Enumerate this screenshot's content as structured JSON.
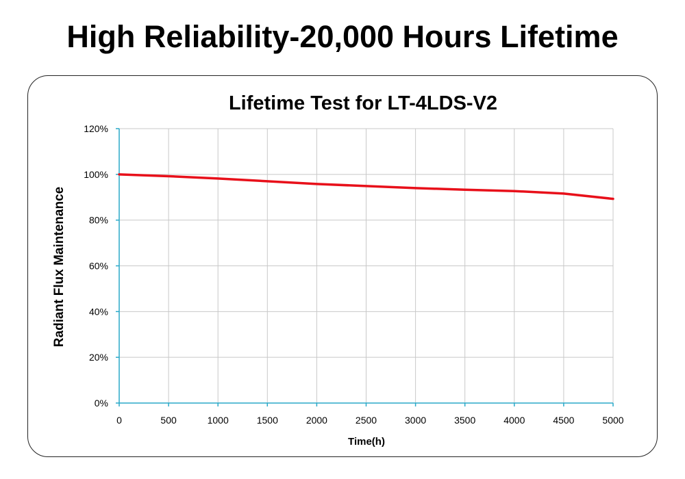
{
  "page_title": "High Reliability-20,000 Hours Lifetime",
  "colors": {
    "series_line": "#e8101a",
    "axis": "#29a9c9",
    "grid": "#c8c8c8",
    "text": "#000000"
  },
  "chart_data": {
    "type": "line",
    "title": "Lifetime Test for LT-4LDS-V2",
    "xlabel": "Time(h)",
    "ylabel": "Radiant Flux Maintenance",
    "x": [
      0,
      500,
      1000,
      1500,
      2000,
      2500,
      3000,
      3500,
      4000,
      4500,
      5000
    ],
    "series": [
      {
        "name": "Radiant Flux Maintenance",
        "values": [
          100,
          99.2,
          98.2,
          97,
          95.8,
          94.9,
          94,
          93.3,
          92.7,
          91.6,
          89.3
        ]
      }
    ],
    "xlim": [
      0,
      5000
    ],
    "ylim": [
      0,
      120
    ],
    "x_ticks": [
      0,
      500,
      1000,
      1500,
      2000,
      2500,
      3000,
      3500,
      4000,
      4500,
      5000
    ],
    "x_tick_labels": [
      "0",
      "500",
      "1000",
      "1500",
      "2000",
      "2500",
      "3000",
      "3500",
      "4000",
      "4500",
      "5000"
    ],
    "y_ticks": [
      0,
      20,
      40,
      60,
      80,
      100,
      120
    ],
    "y_tick_labels": [
      "0%",
      "20%",
      "40%",
      "60%",
      "80%",
      "100%",
      "120%"
    ],
    "grid": true,
    "legend": "none"
  }
}
